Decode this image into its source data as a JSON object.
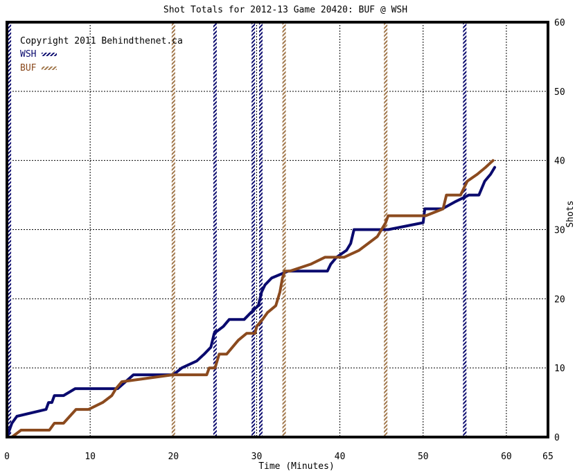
{
  "chart_data": {
    "type": "line",
    "title": "Shot Totals for 2012-13 Game 20420: BUF @ WSH",
    "xlabel": "Time (Minutes)",
    "ylabel": "Shots",
    "copyright": "Copyright 2011 Behindthenet.ca",
    "xlim": [
      0,
      65
    ],
    "ylim": [
      0,
      60
    ],
    "x_ticks": [
      0,
      10,
      20,
      30,
      40,
      50,
      60,
      65
    ],
    "y_ticks": [
      0,
      10,
      20,
      30,
      40,
      50,
      60
    ],
    "grid": true,
    "legend_position": "top-left",
    "series": [
      {
        "name": "WSH",
        "color": "#0a0a6e",
        "points": [
          [
            0,
            0
          ],
          [
            0.3,
            1
          ],
          [
            0.6,
            2
          ],
          [
            1.2,
            3
          ],
          [
            4.7,
            4
          ],
          [
            5.0,
            5
          ],
          [
            5.4,
            5
          ],
          [
            5.7,
            6
          ],
          [
            6.8,
            6
          ],
          [
            8.2,
            7
          ],
          [
            13.3,
            7
          ],
          [
            15.2,
            9
          ],
          [
            20.0,
            9
          ],
          [
            21.0,
            10
          ],
          [
            22.8,
            11
          ],
          [
            23.7,
            12
          ],
          [
            24.5,
            13
          ],
          [
            24.9,
            15
          ],
          [
            26.0,
            16
          ],
          [
            26.7,
            17
          ],
          [
            28.5,
            17
          ],
          [
            29.3,
            18
          ],
          [
            30.2,
            19
          ],
          [
            30.6,
            21
          ],
          [
            31.0,
            22
          ],
          [
            31.8,
            23
          ],
          [
            33.8,
            24
          ],
          [
            38.5,
            24
          ],
          [
            38.9,
            25
          ],
          [
            39.6,
            26
          ],
          [
            40.8,
            27
          ],
          [
            41.3,
            28
          ],
          [
            41.7,
            30
          ],
          [
            45.8,
            30
          ],
          [
            50.0,
            31
          ],
          [
            50.2,
            33
          ],
          [
            52.3,
            33
          ],
          [
            53.8,
            34
          ],
          [
            55.5,
            35
          ],
          [
            56.7,
            35
          ],
          [
            57.4,
            37
          ],
          [
            58.1,
            38
          ],
          [
            58.6,
            39
          ]
        ]
      },
      {
        "name": "BUF",
        "color": "#8b4a1e",
        "points": [
          [
            0.6,
            0
          ],
          [
            1.7,
            1
          ],
          [
            5.1,
            1
          ],
          [
            5.7,
            2
          ],
          [
            6.8,
            2
          ],
          [
            8.3,
            4
          ],
          [
            9.8,
            4
          ],
          [
            11.5,
            5
          ],
          [
            12.6,
            6
          ],
          [
            13.1,
            7
          ],
          [
            13.8,
            8
          ],
          [
            19.9,
            9
          ],
          [
            24.0,
            9
          ],
          [
            24.3,
            10
          ],
          [
            25.0,
            10
          ],
          [
            25.5,
            12
          ],
          [
            26.4,
            12
          ],
          [
            27.8,
            14
          ],
          [
            28.8,
            15
          ],
          [
            29.8,
            15
          ],
          [
            30.0,
            16
          ],
          [
            30.7,
            17
          ],
          [
            31.3,
            18
          ],
          [
            32.3,
            19
          ],
          [
            32.8,
            21
          ],
          [
            33.1,
            23
          ],
          [
            33.4,
            24
          ],
          [
            34.0,
            24
          ],
          [
            36.5,
            25
          ],
          [
            38.2,
            26
          ],
          [
            40.5,
            26
          ],
          [
            42.3,
            27
          ],
          [
            44.5,
            29
          ],
          [
            45.5,
            31
          ],
          [
            45.8,
            32
          ],
          [
            50.3,
            32
          ],
          [
            52.4,
            33
          ],
          [
            52.8,
            35
          ],
          [
            54.5,
            35
          ],
          [
            55.3,
            37
          ],
          [
            56.5,
            38
          ],
          [
            57.5,
            39
          ],
          [
            58.4,
            40
          ]
        ]
      }
    ],
    "goal_markers": [
      {
        "x": 0.3,
        "team": "WSH"
      },
      {
        "x": 20.0,
        "team": "BUF"
      },
      {
        "x": 25.0,
        "team": "WSH"
      },
      {
        "x": 29.6,
        "team": "WSH"
      },
      {
        "x": 30.5,
        "team": "WSH"
      },
      {
        "x": 33.3,
        "team": "BUF"
      },
      {
        "x": 45.5,
        "team": "BUF"
      },
      {
        "x": 55.0,
        "team": "WSH"
      }
    ]
  }
}
